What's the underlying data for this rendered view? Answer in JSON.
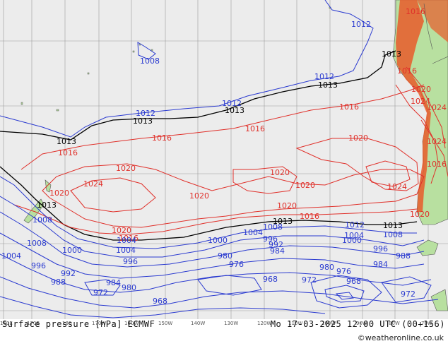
{
  "map": {
    "title": "Surface pressure [hPa] ECMWF",
    "valid_time": "Mo 17-03-2025 12:00 UTC (00+156)",
    "credit": "©weatheronline.co.uk",
    "longitude_labels": [
      "160E",
      "170E",
      "180",
      "170W",
      "160W",
      "150W",
      "140W",
      "130W",
      "120W",
      "110W",
      "100W",
      "90W",
      "80W",
      "70W"
    ],
    "colors": {
      "ocean": "#ececec",
      "land": "#b8e0a0",
      "land_alt": "#e85a2a",
      "isobar_high": "#e0302a",
      "isobar_low": "#2a3ad0",
      "isobar_1013": "#000000",
      "graticule": "#9a9a9a"
    },
    "isobar_labels": {
      "l1012a": "1012",
      "l1012b": "1012",
      "l1012c": "1012",
      "l1012d": "1012",
      "l1012e": "1012",
      "l1013a": "1013",
      "l1013b": "1013",
      "l1013c": "1013",
      "l1013d": "1013",
      "l1013e": "1013",
      "l1013f": "1013",
      "l1013g": "1013",
      "l1013h": "1013",
      "l1008a": "1008",
      "l1008b": "1008",
      "l1008c": "1008",
      "l1008d": "1008",
      "l1008e": "1008",
      "l1016a": "1016",
      "l1016b": "1016",
      "l1016c": "1016",
      "l1016d": "1016",
      "l1016e": "1016",
      "l1016f": "1016",
      "l1016g": "1016",
      "l1016h": "1016",
      "l1020a": "1020",
      "l1020b": "1020",
      "l1020c": "1020",
      "l1020d": "1020",
      "l1020e": "1020",
      "l1020f": "1020",
      "l1020g": "1020",
      "l1020h": "1020",
      "l1020i": "1020",
      "l1020j": "1020",
      "l1024a": "1024",
      "l1024b": "1024",
      "l1024c": "1024",
      "l1024d": "1024",
      "l1024e": "1024",
      "l1004a": "1004",
      "l1004b": "1004",
      "l1004c": "1004",
      "l1004d": "1004",
      "l1004e": "1004",
      "l1000a": "1000",
      "l1000b": "1000",
      "l1000c": "1000",
      "l996a": "996",
      "l996b": "996",
      "l996c": "996",
      "l996d": "996",
      "l992a": "992",
      "l992b": "992",
      "l988a": "988",
      "l988b": "988",
      "l984a": "984",
      "l984b": "984",
      "l984c": "984",
      "l980a": "980",
      "l980b": "980",
      "l980c": "980",
      "l976a": "976",
      "l976b": "976",
      "l972a": "972",
      "l972b": "972",
      "l972c": "972",
      "l968a": "968",
      "l968b": "968",
      "l968c": "968"
    }
  }
}
